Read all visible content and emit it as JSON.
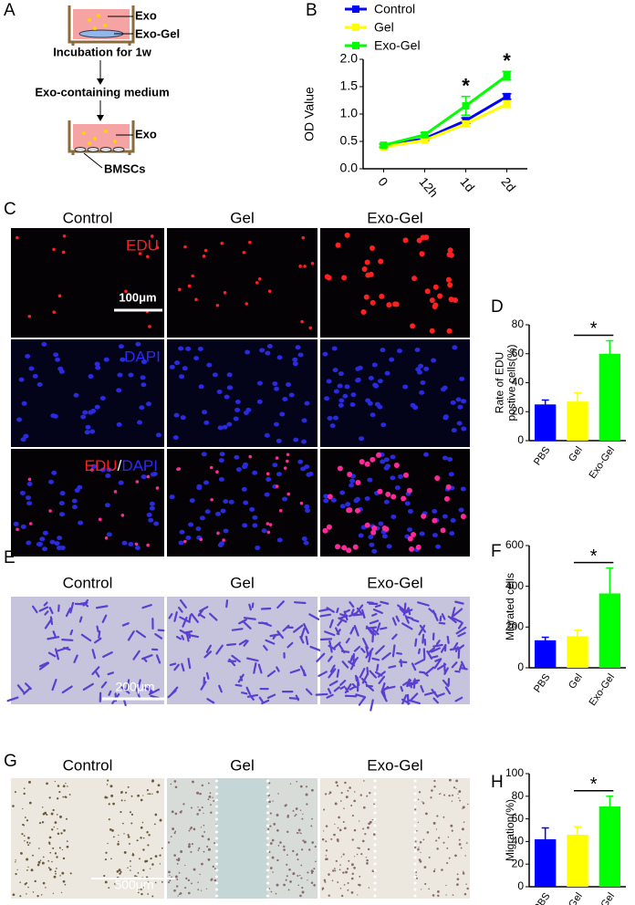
{
  "panel_labels": [
    "A",
    "B",
    "C",
    "D",
    "E",
    "F",
    "G",
    "H"
  ],
  "schematic": {
    "top_exo": "Exo",
    "top_gel": "Exo-Gel",
    "step1": "Incubation for 1w",
    "step2": "Exo-containing medium",
    "bottom_exo": "Exo",
    "cells": "BMSCs"
  },
  "images": {
    "C": {
      "columns": [
        "Control",
        "Gel",
        "Exo-Gel"
      ],
      "row_labels": [
        "EDU",
        "DAPI"
      ],
      "merge": [
        "EDU",
        "/",
        "DAPI"
      ],
      "scale": "100μm"
    },
    "E": {
      "columns": [
        "Control",
        "Gel",
        "Exo-Gel"
      ],
      "scale": "200μm"
    },
    "G": {
      "columns": [
        "Control",
        "Gel",
        "Exo-Gel"
      ],
      "scale": "500μm"
    }
  },
  "chart_data": [
    {
      "type": "line",
      "ylabel": "OD Value",
      "categories": [
        "0",
        "12h",
        "1d",
        "2d"
      ],
      "series": [
        {
          "name": "Control",
          "color": "#0000ff",
          "values": [
            0.42,
            0.55,
            0.88,
            1.32
          ],
          "errors": [
            0.03,
            0.03,
            0.05,
            0.05
          ]
        },
        {
          "name": "Gel",
          "color": "#ffff00",
          "values": [
            0.4,
            0.52,
            0.82,
            1.18
          ],
          "errors": [
            0.03,
            0.03,
            0.05,
            0.06
          ]
        },
        {
          "name": "Exo-Gel",
          "color": "#00ff00",
          "values": [
            0.43,
            0.62,
            1.15,
            1.7
          ],
          "errors": [
            0.03,
            0.04,
            0.17,
            0.08
          ]
        }
      ],
      "ylim": [
        0,
        2
      ],
      "yticks": [
        {
          "value": 0,
          "label": "0.0"
        },
        0.5,
        {
          "value": 1,
          "label": "1.0"
        },
        1.5,
        {
          "value": 2,
          "label": "2.0"
        }
      ],
      "annotations": [
        "*",
        "*"
      ]
    },
    {
      "type": "bar",
      "ylabel": [
        "Rate of EDU",
        "postive cells(%)"
      ],
      "categories": [
        "PBS",
        "Gel",
        "Exo-Gel"
      ],
      "values": [
        25,
        27,
        60
      ],
      "errors": [
        3,
        6,
        9
      ],
      "colors": [
        "#0000ff",
        "#ffff00",
        "#00ff00"
      ],
      "ylim": [
        0,
        80
      ],
      "yticks": [
        0,
        20,
        40,
        60,
        80
      ],
      "annotations": [
        "*"
      ]
    },
    {
      "type": "bar",
      "ylabel": [
        "Migrated cells"
      ],
      "categories": [
        "PBS",
        "Gel",
        "Exo-Gel"
      ],
      "values": [
        135,
        155,
        365
      ],
      "errors": [
        15,
        30,
        125
      ],
      "colors": [
        "#0000ff",
        "#ffff00",
        "#00ff00"
      ],
      "ylim": [
        0,
        600
      ],
      "yticks": [
        0,
        200,
        400,
        600
      ],
      "annotations": [
        "*"
      ]
    },
    {
      "type": "bar",
      "ylabel": [
        "Migration(%)"
      ],
      "categories": [
        "PBS",
        "Gel",
        "Exo-Gel"
      ],
      "values": [
        42,
        46,
        71
      ],
      "errors": [
        10,
        7,
        9
      ],
      "colors": [
        "#0000ff",
        "#ffff00",
        "#00ff00"
      ],
      "ylim": [
        0,
        100
      ],
      "yticks": [
        0,
        20,
        40,
        60,
        80,
        100
      ],
      "annotations": [
        "*"
      ]
    }
  ]
}
